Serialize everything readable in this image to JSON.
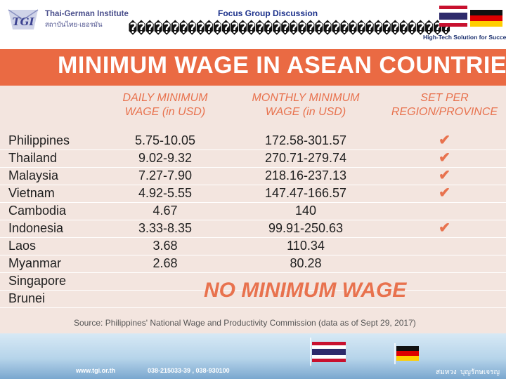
{
  "header": {
    "logo_text": "TGI",
    "institute_en": "Thai-German Institute",
    "institute_th": "สถาบันไทย-เยอรมัน",
    "deck_title": "Focus Group Discussion",
    "garbled_title": "��������������������������������������",
    "tagline": "High-Tech Solution for Success"
  },
  "infographic": {
    "title": "MINIMUM WAGE IN ASEAN COUNTRIES",
    "columns": {
      "daily_line1": "DAILY MINIMUM",
      "daily_line2": "WAGE (in USD)",
      "monthly_line1": "MONTHLY MINIMUM",
      "monthly_line2": "WAGE (in USD)",
      "region_line1": "SET PER",
      "region_line2": "REGION/PROVINCE"
    },
    "rows": [
      {
        "country": "Philippines",
        "daily": "5.75-10.05",
        "monthly": "172.58-301.57",
        "per_region": "✔"
      },
      {
        "country": "Thailand",
        "daily": "9.02-9.32",
        "monthly": "270.71-279.74",
        "per_region": "✔"
      },
      {
        "country": "Malaysia",
        "daily": "7.27-7.90",
        "monthly": "218.16-237.13",
        "per_region": "✔"
      },
      {
        "country": "Vietnam",
        "daily": "4.92-5.55",
        "monthly": "147.47-166.57",
        "per_region": "✔"
      },
      {
        "country": "Cambodia",
        "daily": "4.67",
        "monthly": "140",
        "per_region": ""
      },
      {
        "country": "Indonesia",
        "daily": "3.33-8.35",
        "monthly": "99.91-250.63",
        "per_region": "✔"
      },
      {
        "country": "Laos",
        "daily": "3.68",
        "monthly": "110.34",
        "per_region": ""
      },
      {
        "country": "Myanmar",
        "daily": "2.68",
        "monthly": "80.28",
        "per_region": ""
      },
      {
        "country": "Singapore",
        "daily": "",
        "monthly": "",
        "per_region": ""
      },
      {
        "country": "Brunei",
        "daily": "",
        "monthly": "",
        "per_region": ""
      }
    ],
    "no_minimum_text": "NO MINIMUM WAGE",
    "source": "Source: Philippines' National Wage and Productivity Commission (data as of Sept 29, 2017)"
  },
  "footer": {
    "website": "www.tgi.or.th",
    "phone": "038-215033-39 , 038-930100",
    "name1": "สมหวง",
    "name2": "บุญรักษเจรญ"
  },
  "colors": {
    "banner": "#ea6a43",
    "accent": "#e8724e",
    "panel": "#f3e5df"
  }
}
